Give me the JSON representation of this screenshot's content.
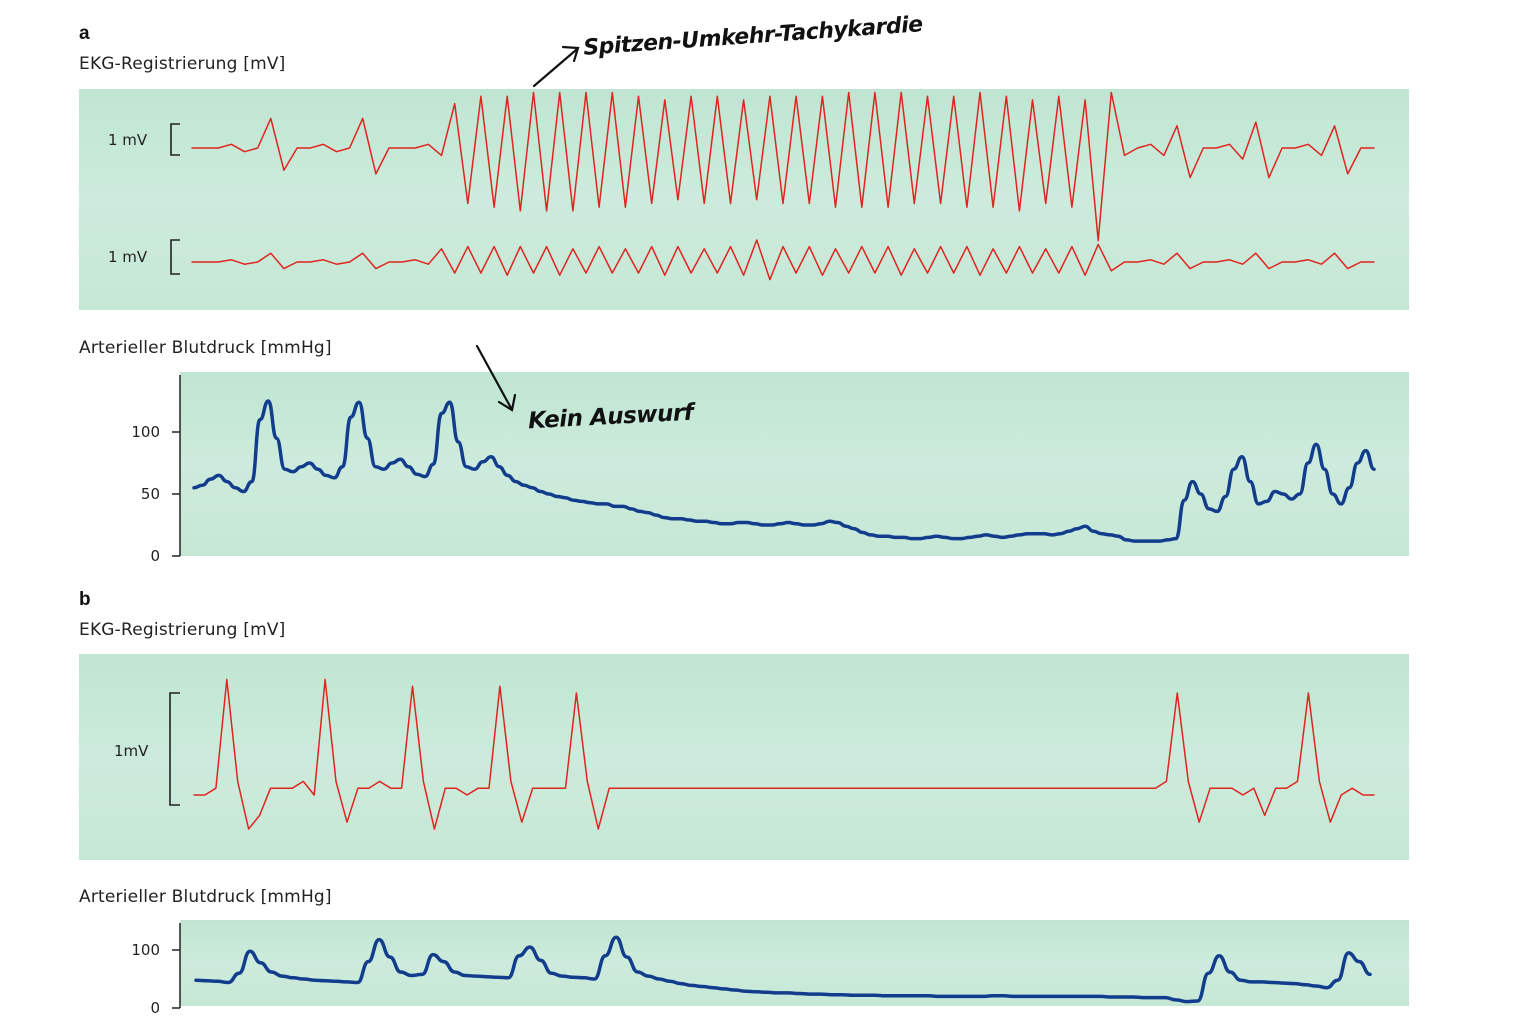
{
  "annotations": {
    "tachy": "Spitzen-Umkehr-Tachykardie",
    "no_output": "Kein Auswurf"
  },
  "colors": {
    "ecg": "#e0251f",
    "bp": "#123d8c",
    "strip_bg": "#c6e7d6"
  },
  "chart_data": [
    {
      "panel": "a",
      "type": "line",
      "title": "EKG-Registrierung [mV]",
      "scale_bars": [
        "1 mV",
        "1 mV"
      ],
      "series": [
        {
          "values": [
            0,
            0,
            0,
            0.1,
            -0.1,
            0,
            0.8,
            -0.6,
            0,
            0,
            0.1,
            -0.1,
            0,
            0.8,
            -0.7,
            0,
            0,
            0,
            0.1,
            -0.2,
            1.2,
            -1.5,
            1.4,
            -1.6,
            1.4,
            -1.7,
            1.5,
            -1.7,
            1.5,
            -1.7,
            1.5,
            -1.6,
            1.5,
            -1.6,
            1.4,
            -1.5,
            1.3,
            -1.4,
            1.4,
            -1.5,
            1.4,
            -1.5,
            1.3,
            -1.4,
            1.4,
            -1.5,
            1.4,
            -1.5,
            1.4,
            -1.6,
            1.5,
            -1.6,
            1.5,
            -1.6,
            1.5,
            -1.5,
            1.4,
            -1.5,
            1.4,
            -1.6,
            1.5,
            -1.6,
            1.4,
            -1.7,
            1.3,
            -1.5,
            1.4,
            -1.6,
            1.3,
            -2.5,
            1.5,
            -0.2,
            0,
            0.1,
            -0.2,
            0.6,
            -0.8,
            0,
            0,
            0.1,
            -0.3,
            0.7,
            -0.8,
            0,
            0,
            0.1,
            -0.2,
            0.6,
            -0.7,
            0,
            0
          ]
        },
        {
          "values": [
            0,
            0,
            0,
            0.1,
            -0.1,
            0,
            0.4,
            -0.3,
            0,
            0,
            0.1,
            -0.1,
            0,
            0.4,
            -0.3,
            0,
            0,
            0.1,
            -0.1,
            0.6,
            -0.5,
            0.7,
            -0.5,
            0.7,
            -0.6,
            0.7,
            -0.5,
            0.7,
            -0.6,
            0.6,
            -0.5,
            0.7,
            -0.5,
            0.6,
            -0.5,
            0.7,
            -0.6,
            0.7,
            -0.5,
            0.6,
            -0.5,
            0.7,
            -0.6,
            1.0,
            -0.8,
            0.7,
            -0.5,
            0.7,
            -0.6,
            0.6,
            -0.5,
            0.7,
            -0.5,
            0.7,
            -0.6,
            0.6,
            -0.5,
            0.7,
            -0.5,
            0.7,
            -0.6,
            0.6,
            -0.5,
            0.7,
            -0.5,
            0.6,
            -0.5,
            0.7,
            -0.6,
            0.8,
            -0.4,
            0,
            0,
            0.1,
            -0.1,
            0.4,
            -0.3,
            0,
            0,
            0.1,
            -0.1,
            0.4,
            -0.3,
            0,
            0,
            0.1,
            -0.1,
            0.4,
            -0.3,
            0,
            0
          ]
        }
      ]
    },
    {
      "panel": "a",
      "type": "line",
      "title": "Arterieller Blutdruck [mmHg]",
      "ylim": [
        0,
        130
      ],
      "yticks": [
        "100",
        "50",
        "0"
      ],
      "series": [
        {
          "values": [
            55,
            57,
            62,
            65,
            60,
            55,
            52,
            60,
            110,
            125,
            95,
            70,
            68,
            72,
            75,
            70,
            65,
            63,
            72,
            112,
            124,
            95,
            72,
            70,
            75,
            78,
            72,
            66,
            64,
            74,
            115,
            124,
            92,
            72,
            70,
            76,
            80,
            72,
            65,
            60,
            57,
            55,
            52,
            50,
            48,
            47,
            45,
            44,
            43,
            42,
            42,
            40,
            40,
            38,
            36,
            35,
            33,
            31,
            30,
            30,
            29,
            28,
            28,
            27,
            26,
            26,
            27,
            27,
            26,
            25,
            25,
            26,
            27,
            26,
            25,
            25,
            26,
            28,
            27,
            24,
            22,
            19,
            17,
            16,
            16,
            15,
            15,
            14,
            14,
            15,
            16,
            15,
            14,
            14,
            15,
            16,
            17,
            16,
            15,
            16,
            17,
            18,
            18,
            18,
            17,
            18,
            20,
            22,
            24,
            20,
            18,
            17,
            16,
            13,
            12,
            12,
            12,
            12,
            13,
            14,
            45,
            60,
            50,
            38,
            36,
            48,
            70,
            80,
            60,
            42,
            44,
            52,
            50,
            46,
            50,
            75,
            90,
            70,
            50,
            42,
            55,
            75,
            85,
            70
          ]
        }
      ]
    },
    {
      "panel": "b",
      "type": "line",
      "title": "EKG-Registrierung [mV]",
      "scale_bars": [
        "1mV"
      ],
      "series": [
        {
          "values": [
            0,
            0,
            0.1,
            1.7,
            0.2,
            -0.5,
            -0.3,
            0.1,
            0.1,
            0.1,
            0.2,
            0,
            1.7,
            0.2,
            -0.4,
            0.1,
            0.1,
            0.2,
            0.1,
            0.1,
            1.6,
            0.2,
            -0.5,
            0.1,
            0.1,
            0,
            0.1,
            0.1,
            1.6,
            0.2,
            -0.4,
            0.1,
            0.1,
            0.1,
            0.1,
            1.5,
            0.2,
            -0.5,
            0.1,
            0.1,
            0.1,
            0.1,
            0.1,
            0.1,
            0.1,
            0.1,
            0.1,
            0.1,
            0.1,
            0.1,
            0.1,
            0.1,
            0.1,
            0.1,
            0.1,
            0.1,
            0.1,
            0.1,
            0.1,
            0.1,
            0.1,
            0.1,
            0.1,
            0.1,
            0.1,
            0.1,
            0.1,
            0.1,
            0.1,
            0.1,
            0.1,
            0.1,
            0.1,
            0.1,
            0.1,
            0.1,
            0.1,
            0.1,
            0.1,
            0.1,
            0.1,
            0.1,
            0.1,
            0.1,
            0.1,
            0.1,
            0.1,
            0.1,
            0.1,
            0.2,
            1.5,
            0.2,
            -0.4,
            0.1,
            0.1,
            0.1,
            0,
            0.1,
            -0.3,
            0.1,
            0.1,
            0.2,
            1.5,
            0.2,
            -0.4,
            0,
            0.1,
            0,
            0
          ]
        }
      ]
    },
    {
      "panel": "b",
      "type": "line",
      "title": "Arterieller Blutdruck [mmHg]",
      "ylim": [
        0,
        130
      ],
      "yticks": [
        "100",
        "0"
      ],
      "series": [
        {
          "values": [
            48,
            47,
            46,
            44,
            60,
            98,
            78,
            62,
            55,
            52,
            50,
            48,
            47,
            46,
            45,
            44,
            80,
            118,
            88,
            62,
            56,
            58,
            92,
            80,
            62,
            56,
            55,
            54,
            53,
            52,
            90,
            105,
            82,
            60,
            55,
            53,
            52,
            50,
            90,
            122,
            88,
            62,
            55,
            50,
            46,
            42,
            39,
            37,
            35,
            33,
            31,
            29,
            28,
            27,
            26,
            26,
            25,
            24,
            24,
            23,
            23,
            22,
            22,
            22,
            21,
            21,
            21,
            21,
            21,
            20,
            20,
            20,
            20,
            20,
            21,
            21,
            20,
            20,
            20,
            20,
            20,
            20,
            20,
            20,
            20,
            19,
            19,
            19,
            18,
            18,
            18,
            14,
            11,
            12,
            60,
            90,
            62,
            48,
            45,
            45,
            44,
            43,
            42,
            40,
            38,
            35,
            48,
            95,
            80,
            58
          ]
        }
      ]
    }
  ]
}
